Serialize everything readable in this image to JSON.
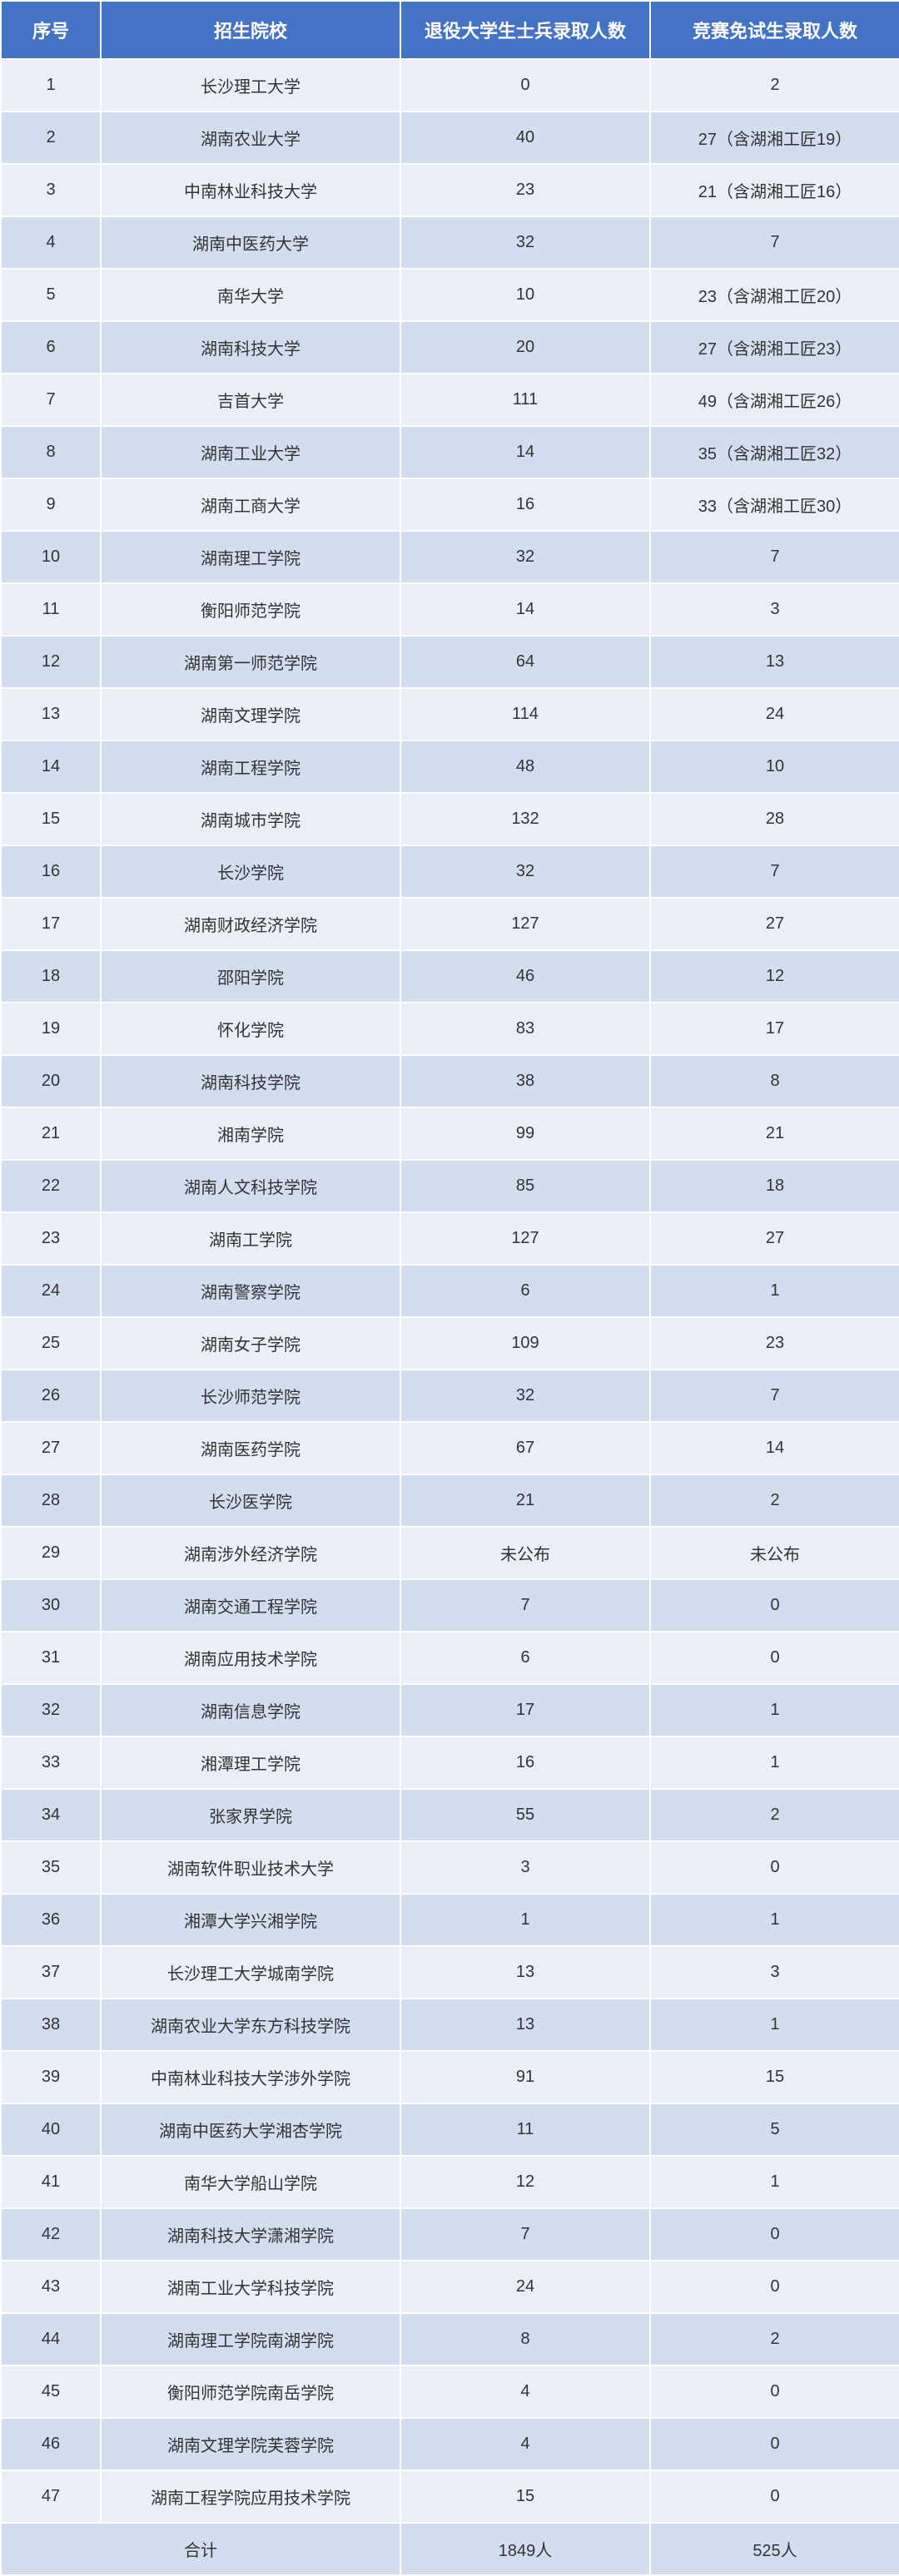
{
  "table": {
    "header_bg": "#4472c4",
    "header_color": "#ffffff",
    "row_odd_bg": "#eaeff7",
    "row_even_bg": "#d2deef",
    "text_color": "#333333",
    "header_fontsize": 22,
    "cell_fontsize": 20,
    "columns": [
      "序号",
      "招生院校",
      "退役大学生士兵录取人数",
      "竞赛免试生录取人数"
    ],
    "rows": [
      [
        "1",
        "长沙理工大学",
        "0",
        "2"
      ],
      [
        "2",
        "湖南农业大学",
        "40",
        "27（含湖湘工匠19）"
      ],
      [
        "3",
        "中南林业科技大学",
        "23",
        "21（含湖湘工匠16）"
      ],
      [
        "4",
        "湖南中医药大学",
        "32",
        "7"
      ],
      [
        "5",
        "南华大学",
        "10",
        "23（含湖湘工匠20）"
      ],
      [
        "6",
        "湖南科技大学",
        "20",
        "27（含湖湘工匠23）"
      ],
      [
        "7",
        "吉首大学",
        "111",
        "49（含湖湘工匠26）"
      ],
      [
        "8",
        "湖南工业大学",
        "14",
        "35（含湖湘工匠32）"
      ],
      [
        "9",
        "湖南工商大学",
        "16",
        "33（含湖湘工匠30）"
      ],
      [
        "10",
        "湖南理工学院",
        "32",
        "7"
      ],
      [
        "11",
        "衡阳师范学院",
        "14",
        "3"
      ],
      [
        "12",
        "湖南第一师范学院",
        "64",
        "13"
      ],
      [
        "13",
        "湖南文理学院",
        "114",
        "24"
      ],
      [
        "14",
        "湖南工程学院",
        "48",
        "10"
      ],
      [
        "15",
        "湖南城市学院",
        "132",
        "28"
      ],
      [
        "16",
        "长沙学院",
        "32",
        "7"
      ],
      [
        "17",
        "湖南财政经济学院",
        "127",
        "27"
      ],
      [
        "18",
        "邵阳学院",
        "46",
        "12"
      ],
      [
        "19",
        "怀化学院",
        "83",
        "17"
      ],
      [
        "20",
        "湖南科技学院",
        "38",
        "8"
      ],
      [
        "21",
        "湘南学院",
        "99",
        "21"
      ],
      [
        "22",
        "湖南人文科技学院",
        "85",
        "18"
      ],
      [
        "23",
        "湖南工学院",
        "127",
        "27"
      ],
      [
        "24",
        "湖南警察学院",
        "6",
        "1"
      ],
      [
        "25",
        "湖南女子学院",
        "109",
        "23"
      ],
      [
        "26",
        "长沙师范学院",
        "32",
        "7"
      ],
      [
        "27",
        "湖南医药学院",
        "67",
        "14"
      ],
      [
        "28",
        "长沙医学院",
        "21",
        "2"
      ],
      [
        "29",
        "湖南涉外经济学院",
        "未公布",
        "未公布"
      ],
      [
        "30",
        "湖南交通工程学院",
        "7",
        "0"
      ],
      [
        "31",
        "湖南应用技术学院",
        "6",
        "0"
      ],
      [
        "32",
        "湖南信息学院",
        "17",
        "1"
      ],
      [
        "33",
        "湘潭理工学院",
        "16",
        "1"
      ],
      [
        "34",
        "张家界学院",
        "55",
        "2"
      ],
      [
        "35",
        "湖南软件职业技术大学",
        "3",
        "0"
      ],
      [
        "36",
        "湘潭大学兴湘学院",
        "1",
        "1"
      ],
      [
        "37",
        "长沙理工大学城南学院",
        "13",
        "3"
      ],
      [
        "38",
        "湖南农业大学东方科技学院",
        "13",
        "1"
      ],
      [
        "39",
        "中南林业科技大学涉外学院",
        "91",
        "15"
      ],
      [
        "40",
        "湖南中医药大学湘杏学院",
        "11",
        "5"
      ],
      [
        "41",
        "南华大学船山学院",
        "12",
        "1"
      ],
      [
        "42",
        "湖南科技大学潇湘学院",
        "7",
        "0"
      ],
      [
        "43",
        "湖南工业大学科技学院",
        "24",
        "0"
      ],
      [
        "44",
        "湖南理工学院南湖学院",
        "8",
        "2"
      ],
      [
        "45",
        "衡阳师范学院南岳学院",
        "4",
        "0"
      ],
      [
        "46",
        "湖南文理学院芙蓉学院",
        "4",
        "0"
      ],
      [
        "47",
        "湖南工程学院应用技术学院",
        "15",
        "0"
      ]
    ],
    "footer": {
      "label": "合计",
      "v1": "1849人",
      "v2": "525人"
    }
  }
}
